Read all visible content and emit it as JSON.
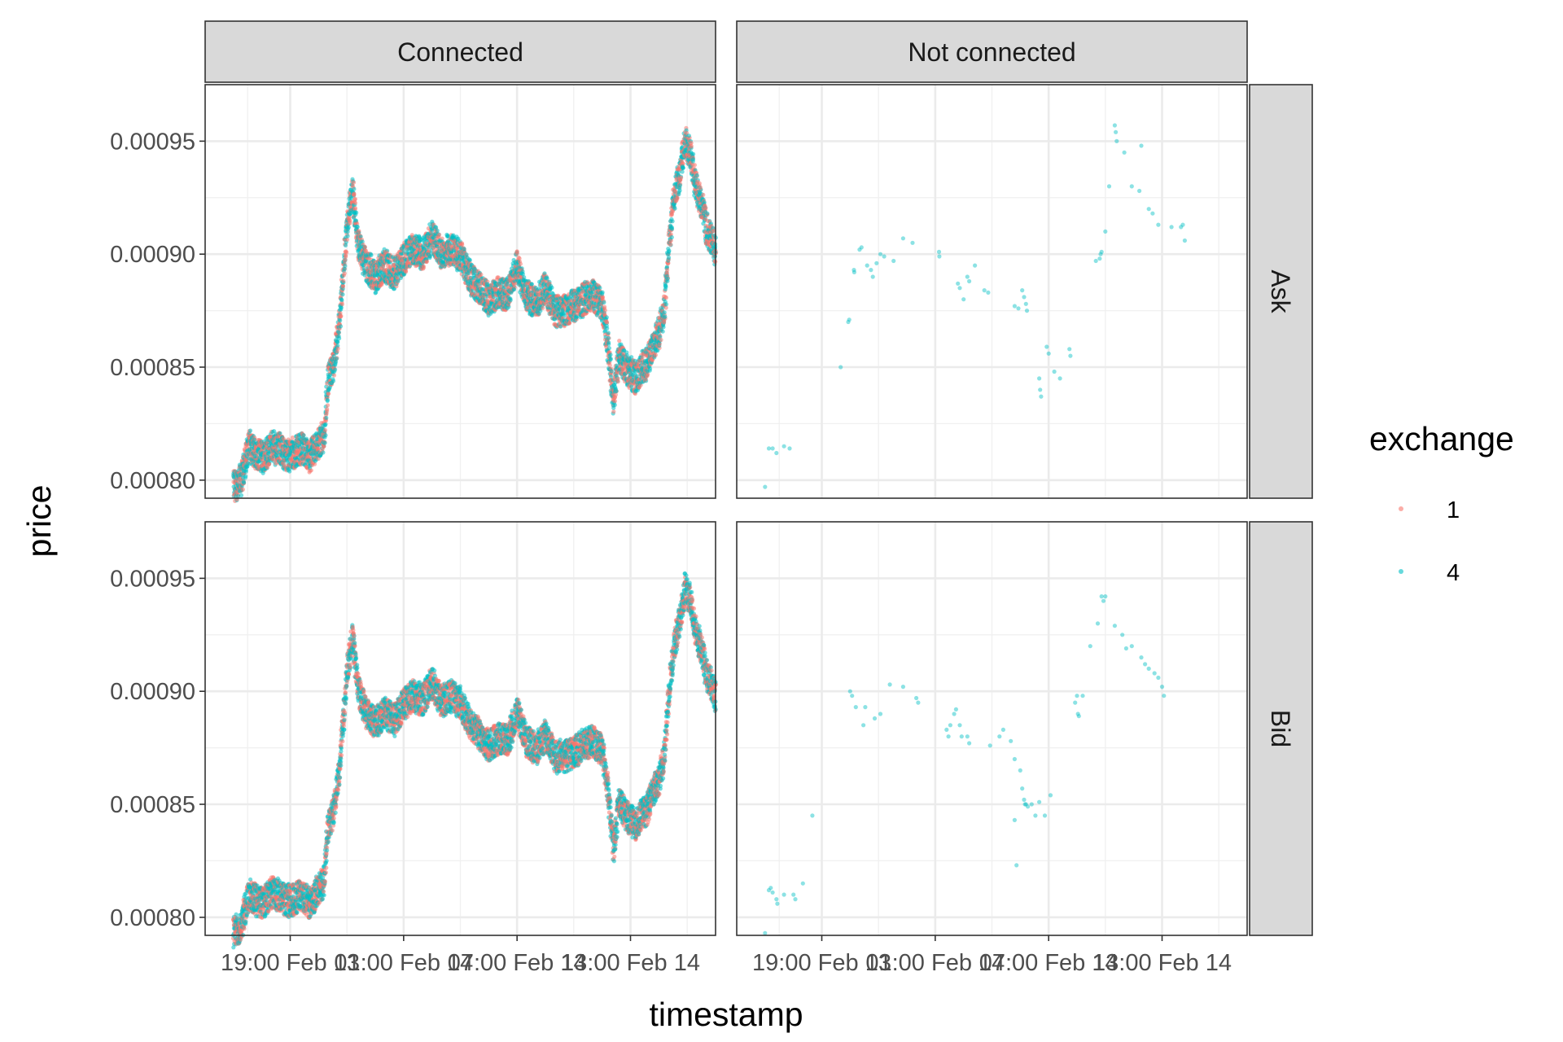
{
  "chart_data": {
    "type": "scatter",
    "xlabel": "timestamp",
    "ylabel": "price",
    "facet_cols": [
      "Connected",
      "Not connected"
    ],
    "facet_rows": [
      "Ask",
      "Bid"
    ],
    "x_ticks": [
      "19:00 Feb 13",
      "01:00 Feb 14",
      "07:00 Feb 14",
      "13:00 Feb 14"
    ],
    "x_tick_hours": [
      19,
      25,
      31,
      37
    ],
    "xlim_hours": [
      14.5,
      41.5
    ],
    "y_ticks": [
      "0.00080",
      "0.00085",
      "0.00090",
      "0.00095"
    ],
    "y_tick_values": [
      0.0008,
      0.00085,
      0.0009,
      0.00095
    ],
    "ylim": [
      0.000792,
      0.000975
    ],
    "grid": true,
    "legend": {
      "title": "exchange",
      "position": "right",
      "entries": [
        {
          "label": "1",
          "color": "#F8766D"
        },
        {
          "label": "4",
          "color": "#00BFC4"
        }
      ]
    },
    "series": [
      {
        "name": "1",
        "color": "#F8766D"
      },
      {
        "name": "4",
        "color": "#00BFC4"
      }
    ],
    "connected_price_path": {
      "x_hours": [
        16.0,
        16.4,
        16.8,
        17.2,
        17.6,
        18.0,
        18.4,
        18.8,
        19.2,
        19.6,
        20.0,
        20.4,
        20.8,
        21.0,
        21.3,
        21.6,
        21.8,
        22.0,
        22.3,
        22.6,
        23.0,
        23.5,
        24.0,
        24.5,
        25.0,
        25.5,
        26.0,
        26.5,
        27.0,
        27.5,
        28.0,
        28.5,
        29.0,
        29.5,
        30.0,
        30.5,
        31.0,
        31.5,
        32.0,
        32.5,
        33.0,
        33.5,
        34.0,
        34.5,
        35.0,
        35.5,
        35.8,
        36.1,
        36.4,
        36.7,
        37.0,
        37.3,
        37.6,
        37.9,
        38.2,
        38.5,
        38.8,
        39.0,
        39.3,
        39.6,
        39.9,
        40.2,
        40.5,
        40.8,
        41.0,
        41.2,
        41.5
      ],
      "ask": [
        0.000797,
        0.0008,
        0.000815,
        0.000812,
        0.00081,
        0.000815,
        0.000814,
        0.000811,
        0.000812,
        0.000814,
        0.00081,
        0.000815,
        0.00082,
        0.000845,
        0.00085,
        0.00087,
        0.00089,
        0.000912,
        0.000928,
        0.000905,
        0.000895,
        0.00089,
        0.000895,
        0.000891,
        0.000898,
        0.000902,
        0.0009,
        0.000908,
        0.0009,
        0.000902,
        0.000899,
        0.00089,
        0.000885,
        0.00088,
        0.000883,
        0.000882,
        0.000895,
        0.000882,
        0.000878,
        0.000885,
        0.000875,
        0.000875,
        0.000877,
        0.00088,
        0.000882,
        0.000878,
        0.00086,
        0.000835,
        0.000855,
        0.00085,
        0.000847,
        0.000845,
        0.00085,
        0.000852,
        0.00086,
        0.000865,
        0.000875,
        0.0009,
        0.000925,
        0.000935,
        0.00095,
        0.000943,
        0.000928,
        0.000922,
        0.000912,
        0.000908,
        0.000902
      ],
      "bid": [
        0.000793,
        0.000796,
        0.00081,
        0.000808,
        0.000806,
        0.000811,
        0.00081,
        0.000807,
        0.000808,
        0.00081,
        0.000806,
        0.000811,
        0.000816,
        0.000841,
        0.000846,
        0.000866,
        0.000886,
        0.000908,
        0.000924,
        0.000901,
        0.000891,
        0.000886,
        0.000891,
        0.000887,
        0.000894,
        0.000898,
        0.000896,
        0.000904,
        0.000896,
        0.000898,
        0.000895,
        0.000886,
        0.000881,
        0.000876,
        0.000879,
        0.000878,
        0.000891,
        0.000878,
        0.000874,
        0.000881,
        0.000871,
        0.000871,
        0.000873,
        0.000876,
        0.000878,
        0.000874,
        0.000856,
        0.000831,
        0.000851,
        0.000846,
        0.000843,
        0.000841,
        0.000846,
        0.000848,
        0.000856,
        0.000861,
        0.000871,
        0.000896,
        0.000921,
        0.000931,
        0.000946,
        0.000939,
        0.000924,
        0.000918,
        0.000908,
        0.000904,
        0.000898
      ]
    },
    "not_connected_points": {
      "ask": [
        [
          16.0,
          0.000797
        ],
        [
          16.2,
          0.000814
        ],
        [
          16.4,
          0.000814
        ],
        [
          16.6,
          0.000812
        ],
        [
          17.0,
          0.000815
        ],
        [
          17.3,
          0.000814
        ],
        [
          20.0,
          0.00085
        ],
        [
          20.4,
          0.00087
        ],
        [
          20.45,
          0.000871
        ],
        [
          20.7,
          0.000893
        ],
        [
          20.72,
          0.000892
        ],
        [
          21.0,
          0.000902
        ],
        [
          21.1,
          0.000903
        ],
        [
          21.4,
          0.000895
        ],
        [
          21.6,
          0.000893
        ],
        [
          21.7,
          0.00089
        ],
        [
          21.9,
          0.000896
        ],
        [
          22.1,
          0.0009
        ],
        [
          22.3,
          0.000899
        ],
        [
          22.8,
          0.000897
        ],
        [
          23.3,
          0.000907
        ],
        [
          23.8,
          0.000905
        ],
        [
          25.2,
          0.000901
        ],
        [
          25.22,
          0.000899
        ],
        [
          26.2,
          0.000887
        ],
        [
          26.3,
          0.000885
        ],
        [
          26.5,
          0.00088
        ],
        [
          26.7,
          0.00089
        ],
        [
          26.8,
          0.000888
        ],
        [
          27.1,
          0.000895
        ],
        [
          27.6,
          0.000884
        ],
        [
          27.8,
          0.000883
        ],
        [
          29.2,
          0.000877
        ],
        [
          29.4,
          0.000876
        ],
        [
          29.6,
          0.000884
        ],
        [
          29.7,
          0.000881
        ],
        [
          29.8,
          0.000878
        ],
        [
          29.85,
          0.000875
        ],
        [
          30.5,
          0.000845
        ],
        [
          30.55,
          0.00084
        ],
        [
          30.6,
          0.000837
        ],
        [
          30.9,
          0.000859
        ],
        [
          31.0,
          0.000856
        ],
        [
          31.3,
          0.000848
        ],
        [
          31.6,
          0.000845
        ],
        [
          32.1,
          0.000858
        ],
        [
          32.15,
          0.000855
        ],
        [
          33.5,
          0.000897
        ],
        [
          33.7,
          0.000898
        ],
        [
          33.75,
          0.0009
        ],
        [
          33.8,
          0.000901
        ],
        [
          34.0,
          0.00091
        ],
        [
          34.2,
          0.00093
        ],
        [
          34.5,
          0.000957
        ],
        [
          34.55,
          0.000954
        ],
        [
          34.6,
          0.00095
        ],
        [
          35.0,
          0.000945
        ],
        [
          35.4,
          0.00093
        ],
        [
          35.8,
          0.000928
        ],
        [
          35.9,
          0.000948
        ],
        [
          36.3,
          0.00092
        ],
        [
          36.5,
          0.000918
        ],
        [
          36.8,
          0.000913
        ],
        [
          37.5,
          0.000912
        ],
        [
          38.0,
          0.000912
        ],
        [
          38.1,
          0.000913
        ],
        [
          38.2,
          0.000906
        ]
      ],
      "bid": [
        [
          16.0,
          0.000793
        ],
        [
          16.2,
          0.000812
        ],
        [
          16.3,
          0.000813
        ],
        [
          16.4,
          0.000811
        ],
        [
          16.6,
          0.000808
        ],
        [
          16.65,
          0.000806
        ],
        [
          17.0,
          0.00081
        ],
        [
          17.5,
          0.00081
        ],
        [
          17.6,
          0.000808
        ],
        [
          18.0,
          0.000815
        ],
        [
          18.5,
          0.000845
        ],
        [
          20.5,
          0.0009
        ],
        [
          20.6,
          0.000898
        ],
        [
          20.8,
          0.000893
        ],
        [
          21.2,
          0.000885
        ],
        [
          21.3,
          0.000893
        ],
        [
          21.8,
          0.000888
        ],
        [
          22.1,
          0.00089
        ],
        [
          22.6,
          0.000903
        ],
        [
          23.3,
          0.000902
        ],
        [
          24.0,
          0.000897
        ],
        [
          24.1,
          0.000895
        ],
        [
          25.6,
          0.000883
        ],
        [
          25.7,
          0.00088
        ],
        [
          25.8,
          0.000885
        ],
        [
          26.0,
          0.00089
        ],
        [
          26.1,
          0.000892
        ],
        [
          26.3,
          0.000885
        ],
        [
          26.4,
          0.00088
        ],
        [
          26.7,
          0.00088
        ],
        [
          26.8,
          0.000877
        ],
        [
          27.9,
          0.000876
        ],
        [
          28.4,
          0.00088
        ],
        [
          28.6,
          0.000883
        ],
        [
          29.0,
          0.000878
        ],
        [
          29.2,
          0.00087
        ],
        [
          29.5,
          0.000865
        ],
        [
          29.6,
          0.000857
        ],
        [
          29.7,
          0.000852
        ],
        [
          29.75,
          0.00085
        ],
        [
          29.8,
          0.00085
        ],
        [
          29.9,
          0.000849
        ],
        [
          30.1,
          0.00085
        ],
        [
          30.3,
          0.000845
        ],
        [
          29.2,
          0.000843
        ],
        [
          29.3,
          0.000823
        ],
        [
          30.5,
          0.000851
        ],
        [
          30.8,
          0.000845
        ],
        [
          31.1,
          0.000854
        ],
        [
          32.4,
          0.000895
        ],
        [
          32.5,
          0.000898
        ],
        [
          32.55,
          0.00089
        ],
        [
          32.6,
          0.000889
        ],
        [
          32.8,
          0.000898
        ],
        [
          33.2,
          0.00092
        ],
        [
          33.6,
          0.00093
        ],
        [
          33.8,
          0.000942
        ],
        [
          33.9,
          0.00094
        ],
        [
          34.0,
          0.000942
        ],
        [
          34.5,
          0.000929
        ],
        [
          34.9,
          0.000925
        ],
        [
          35.1,
          0.000919
        ],
        [
          35.4,
          0.00092
        ],
        [
          35.9,
          0.000915
        ],
        [
          36.1,
          0.000912
        ],
        [
          36.3,
          0.00091
        ],
        [
          36.6,
          0.000908
        ],
        [
          36.8,
          0.000906
        ],
        [
          37.0,
          0.000902
        ],
        [
          37.1,
          0.000898
        ]
      ]
    }
  }
}
